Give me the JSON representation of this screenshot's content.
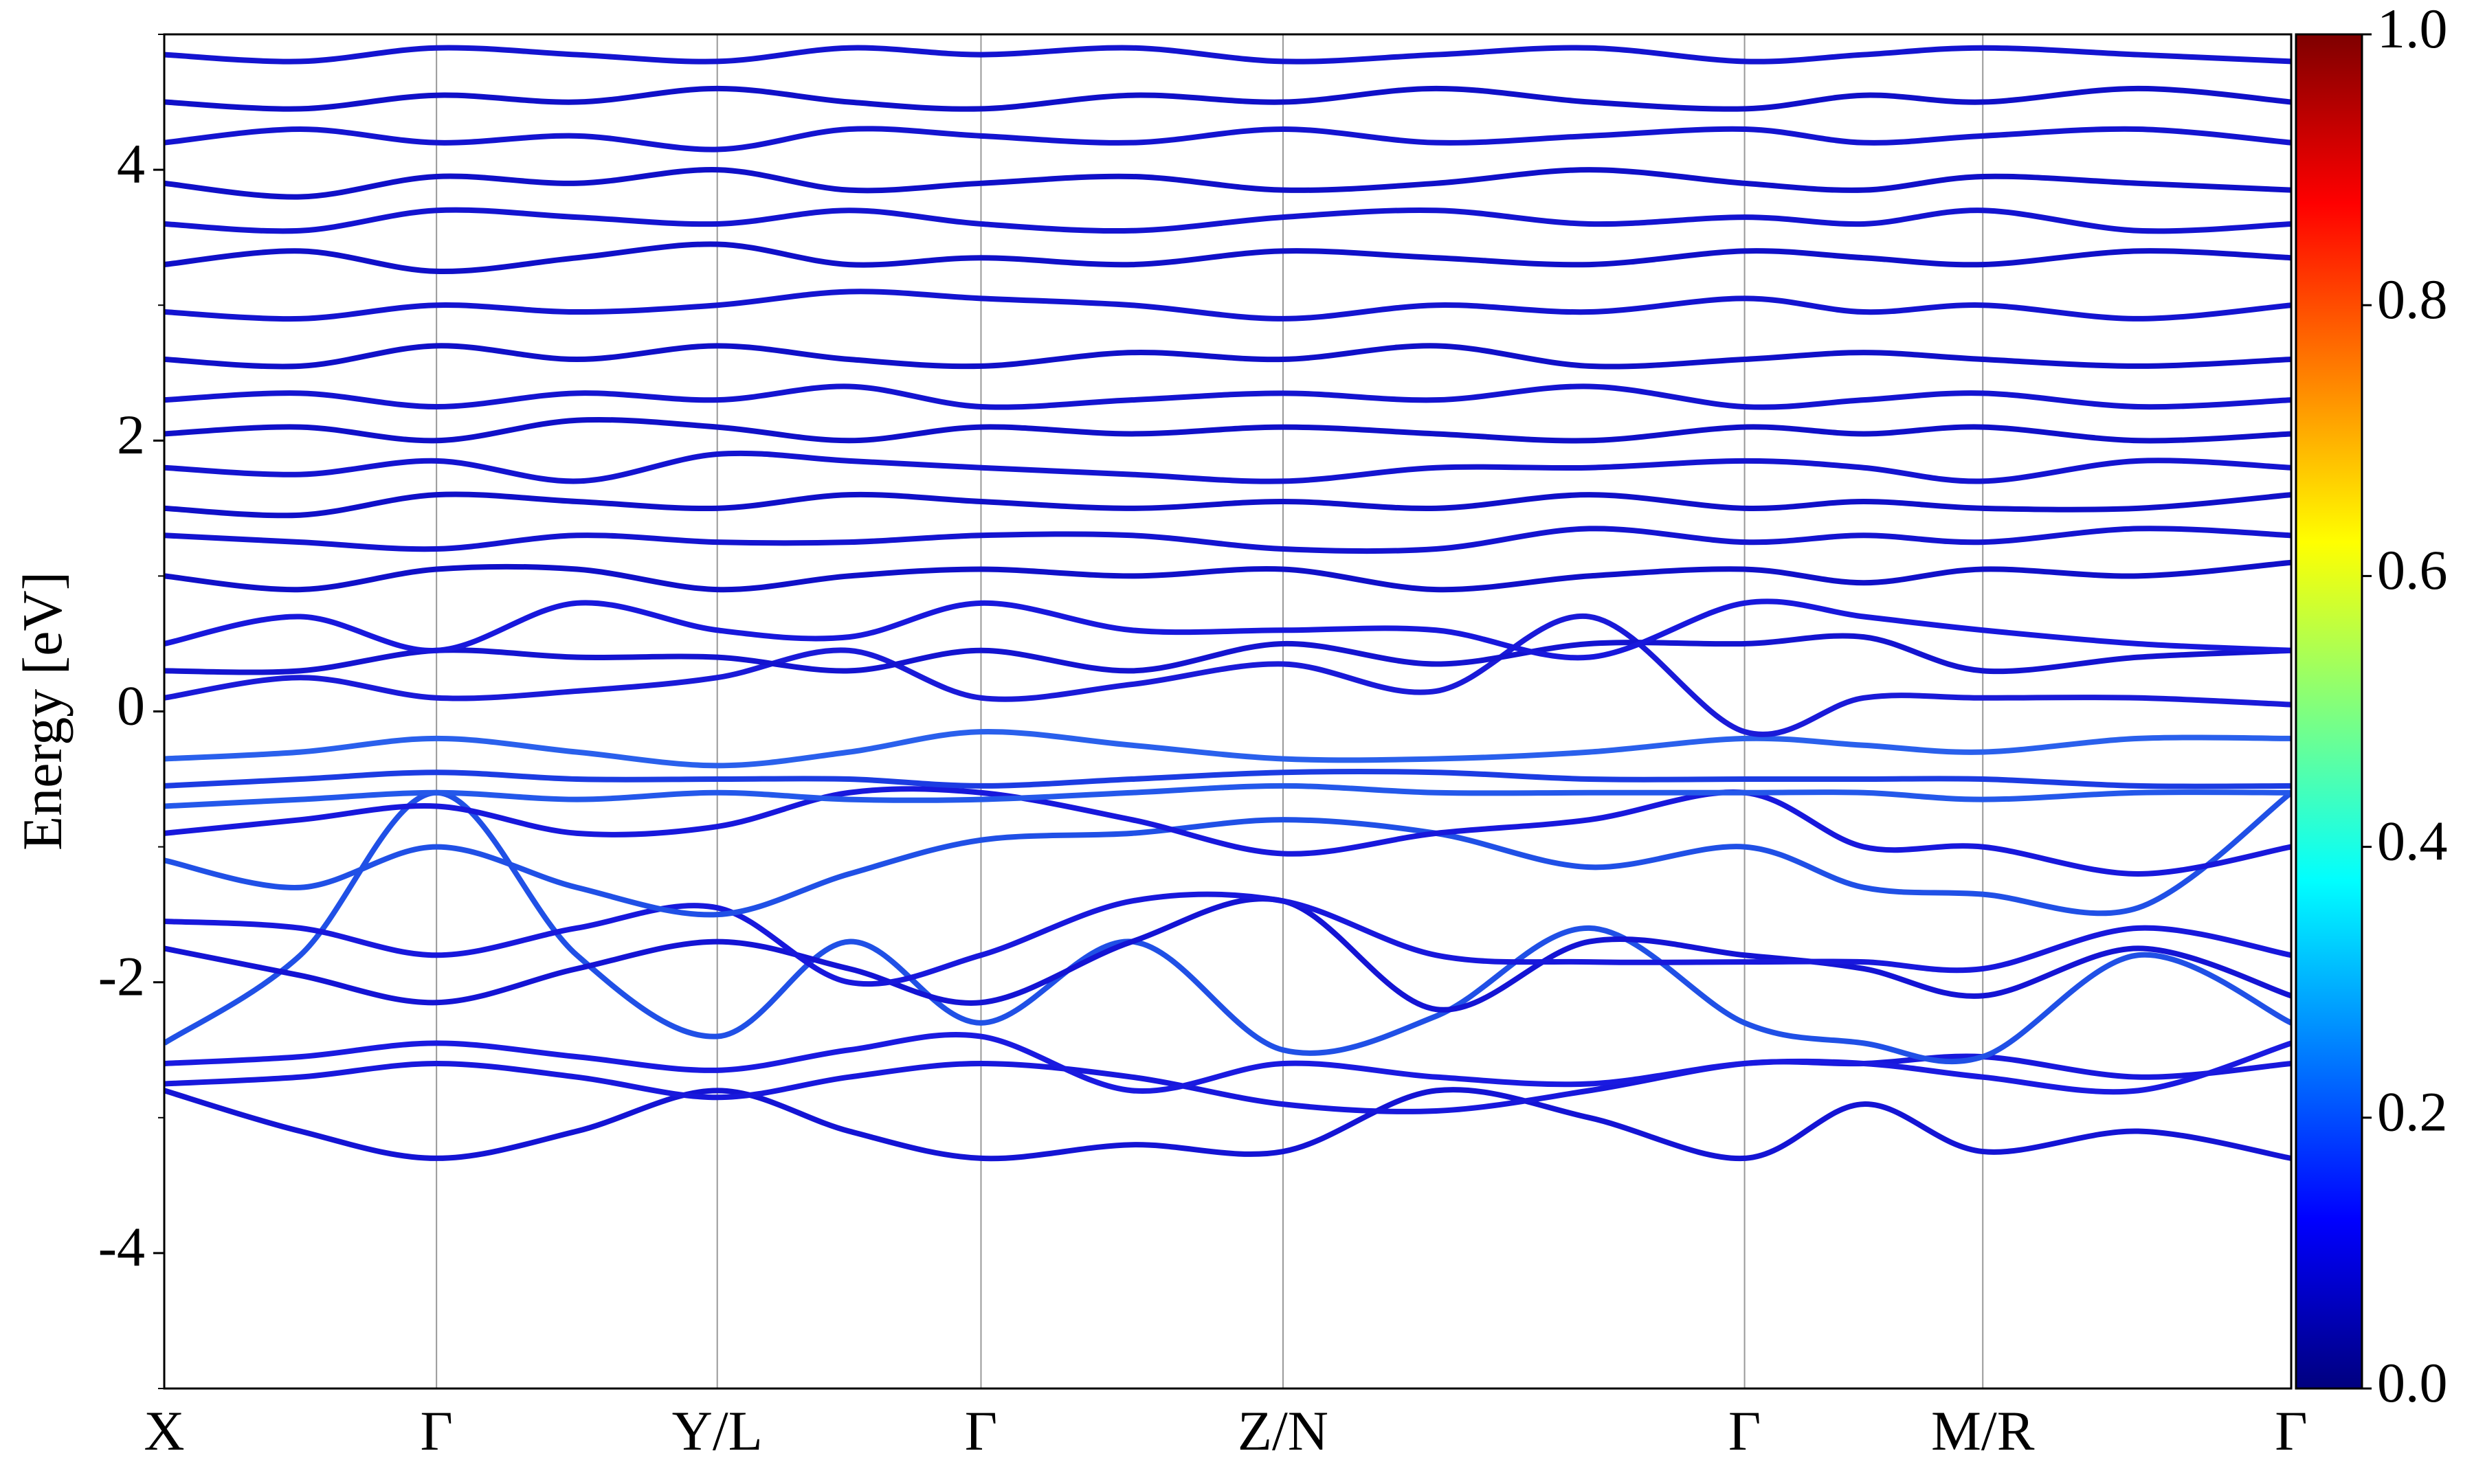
{
  "chart_data": {
    "type": "line",
    "y_label": "Energy [eV]",
    "x": [
      0,
      0.064,
      0.128,
      0.194,
      0.26,
      0.322,
      0.384,
      0.455,
      0.526,
      0.598,
      0.67,
      0.743,
      0.799,
      0.855,
      0.928,
      1.0
    ],
    "xlim": [
      0,
      1.0
    ],
    "xticks": [
      {
        "value": 0,
        "label": "X"
      },
      {
        "value": 0.128,
        "label": "Γ"
      },
      {
        "value": 0.26,
        "label": "Y/L"
      },
      {
        "value": 0.384,
        "label": "Γ"
      },
      {
        "value": 0.526,
        "label": "Z/N"
      },
      {
        "value": 0.743,
        "label": "Γ"
      },
      {
        "value": 0.855,
        "label": "M/R"
      },
      {
        "value": 1.0,
        "label": "Γ"
      }
    ],
    "ylim": [
      -5,
      5
    ],
    "yticks": [
      -4,
      -2,
      0,
      2,
      4
    ],
    "yminorticks": [
      -5,
      -3,
      -1,
      1,
      3,
      5
    ],
    "xgrid": true,
    "colorbar": {
      "lim": [
        0,
        1.0
      ],
      "ticks": [
        {
          "value": 0,
          "label": "0.0"
        },
        {
          "value": 0.2,
          "label": "0.2"
        },
        {
          "value": 0.4,
          "label": "0.4"
        },
        {
          "value": 0.6,
          "label": "0.6"
        },
        {
          "value": 0.8,
          "label": "0.8"
        },
        {
          "value": 1.0,
          "label": "1.0"
        }
      ],
      "colormap": [
        "#00007f",
        "#0000ff",
        "#007fff",
        "#00ffff",
        "#7fff7f",
        "#ffff00",
        "#ff7f00",
        "#ff0000",
        "#7f0000"
      ]
    },
    "series": [
      {
        "color": "#1414d4",
        "values": [
          -2.8,
          -3.1,
          -3.3,
          -3.1,
          -2.8,
          -3.1,
          -3.3,
          -3.2,
          -3.25,
          -2.8,
          -3.0,
          -3.3,
          -2.9,
          -3.25,
          -3.1,
          -3.3
        ]
      },
      {
        "color": "#1818dc",
        "values": [
          -2.75,
          -2.7,
          -2.6,
          -2.7,
          -2.85,
          -2.7,
          -2.6,
          -2.7,
          -2.9,
          -2.95,
          -2.8,
          -2.6,
          -2.6,
          -2.55,
          -2.7,
          -2.6
        ]
      },
      {
        "color": "#1a1ae0",
        "values": [
          -2.6,
          -2.55,
          -2.45,
          -2.55,
          -2.65,
          -2.5,
          -2.4,
          -2.8,
          -2.6,
          -2.7,
          -2.75,
          -2.6,
          -2.6,
          -2.7,
          -2.8,
          -2.45
        ]
      },
      {
        "color": "#2050e6",
        "values": [
          -2.45,
          -1.8,
          -0.6,
          -1.8,
          -2.4,
          -1.7,
          -2.3,
          -1.7,
          -2.5,
          -2.25,
          -1.6,
          -2.3,
          -2.45,
          -2.55,
          -1.8,
          -2.3
        ]
      },
      {
        "color": "#1414d4",
        "values": [
          -1.75,
          -1.95,
          -2.15,
          -1.9,
          -1.7,
          -1.9,
          -2.15,
          -1.7,
          -1.4,
          -2.2,
          -1.7,
          -1.8,
          -1.9,
          -2.1,
          -1.75,
          -2.1
        ]
      },
      {
        "color": "#1818dc",
        "values": [
          -1.55,
          -1.6,
          -1.8,
          -1.6,
          -1.45,
          -2.0,
          -1.8,
          -1.4,
          -1.4,
          -1.8,
          -1.85,
          -1.85,
          -1.85,
          -1.9,
          -1.6,
          -1.8
        ]
      },
      {
        "color": "#2050e6",
        "values": [
          -1.1,
          -1.3,
          -1.0,
          -1.3,
          -1.5,
          -1.2,
          -0.95,
          -0.9,
          -0.8,
          -0.9,
          -1.15,
          -1.0,
          -1.3,
          -1.35,
          -1.45,
          -0.6
        ]
      },
      {
        "color": "#1818dc",
        "values": [
          -0.9,
          -0.8,
          -0.7,
          -0.9,
          -0.85,
          -0.6,
          -0.6,
          -0.8,
          -1.05,
          -0.9,
          -0.8,
          -0.6,
          -1.0,
          -1.0,
          -1.2,
          -1.0
        ]
      },
      {
        "color": "#2458ea",
        "values": [
          -0.7,
          -0.65,
          -0.6,
          -0.65,
          -0.6,
          -0.65,
          -0.65,
          -0.6,
          -0.55,
          -0.6,
          -0.6,
          -0.6,
          -0.6,
          -0.65,
          -0.6,
          -0.6
        ]
      },
      {
        "color": "#1c3ce2",
        "values": [
          -0.55,
          -0.5,
          -0.45,
          -0.5,
          -0.5,
          -0.5,
          -0.55,
          -0.5,
          -0.45,
          -0.45,
          -0.5,
          -0.5,
          -0.5,
          -0.5,
          -0.55,
          -0.55
        ]
      },
      {
        "color": "#2a60ec",
        "values": [
          -0.35,
          -0.3,
          -0.2,
          -0.3,
          -0.4,
          -0.3,
          -0.15,
          -0.25,
          -0.35,
          -0.35,
          -0.3,
          -0.2,
          -0.25,
          -0.3,
          -0.2,
          -0.2
        ]
      },
      {
        "color": "#1a1ad8",
        "values": [
          0.1,
          0.25,
          0.1,
          0.15,
          0.25,
          0.45,
          0.1,
          0.2,
          0.35,
          0.15,
          0.7,
          -0.15,
          0.1,
          0.1,
          0.1,
          0.05
        ]
      },
      {
        "color": "#1414d0",
        "values": [
          0.3,
          0.3,
          0.45,
          0.4,
          0.4,
          0.3,
          0.45,
          0.3,
          0.5,
          0.35,
          0.5,
          0.5,
          0.55,
          0.3,
          0.4,
          0.45
        ]
      },
      {
        "color": "#1818dc",
        "values": [
          0.5,
          0.7,
          0.45,
          0.8,
          0.6,
          0.55,
          0.8,
          0.6,
          0.6,
          0.6,
          0.4,
          0.8,
          0.7,
          0.6,
          0.5,
          0.45
        ]
      },
      {
        "color": "#1010c8",
        "values": [
          1.0,
          0.9,
          1.05,
          1.05,
          0.9,
          1.0,
          1.05,
          1.0,
          1.05,
          0.9,
          1.0,
          1.05,
          0.95,
          1.05,
          1.0,
          1.1
        ]
      },
      {
        "color": "#1414d0",
        "values": [
          1.3,
          1.25,
          1.2,
          1.3,
          1.25,
          1.25,
          1.3,
          1.3,
          1.2,
          1.2,
          1.35,
          1.25,
          1.3,
          1.25,
          1.35,
          1.3
        ]
      },
      {
        "color": "#1010c8",
        "values": [
          1.5,
          1.45,
          1.6,
          1.55,
          1.5,
          1.6,
          1.55,
          1.5,
          1.55,
          1.5,
          1.6,
          1.5,
          1.55,
          1.5,
          1.5,
          1.6
        ]
      },
      {
        "color": "#1414d0",
        "values": [
          1.8,
          1.75,
          1.85,
          1.7,
          1.9,
          1.85,
          1.8,
          1.75,
          1.7,
          1.8,
          1.8,
          1.85,
          1.8,
          1.7,
          1.85,
          1.8
        ]
      },
      {
        "color": "#1010c8",
        "values": [
          2.05,
          2.1,
          2.0,
          2.15,
          2.1,
          2.0,
          2.1,
          2.05,
          2.1,
          2.05,
          2.0,
          2.1,
          2.05,
          2.1,
          2.0,
          2.05
        ]
      },
      {
        "color": "#1414d0",
        "values": [
          2.3,
          2.35,
          2.25,
          2.35,
          2.3,
          2.4,
          2.25,
          2.3,
          2.35,
          2.3,
          2.4,
          2.25,
          2.3,
          2.35,
          2.25,
          2.3
        ]
      },
      {
        "color": "#1010c8",
        "values": [
          2.6,
          2.55,
          2.7,
          2.6,
          2.7,
          2.6,
          2.55,
          2.65,
          2.6,
          2.7,
          2.55,
          2.6,
          2.65,
          2.6,
          2.55,
          2.6
        ]
      },
      {
        "color": "#1414d0",
        "values": [
          2.95,
          2.9,
          3.0,
          2.95,
          3.0,
          3.1,
          3.05,
          3.0,
          2.9,
          3.0,
          2.95,
          3.05,
          2.95,
          3.0,
          2.9,
          3.0
        ]
      },
      {
        "color": "#1010c8",
        "values": [
          3.3,
          3.4,
          3.25,
          3.35,
          3.45,
          3.3,
          3.35,
          3.3,
          3.4,
          3.35,
          3.3,
          3.4,
          3.35,
          3.3,
          3.4,
          3.35
        ]
      },
      {
        "color": "#1414d0",
        "values": [
          3.6,
          3.55,
          3.7,
          3.65,
          3.6,
          3.7,
          3.6,
          3.55,
          3.65,
          3.7,
          3.6,
          3.65,
          3.6,
          3.7,
          3.55,
          3.6
        ]
      },
      {
        "color": "#1010c8",
        "values": [
          3.9,
          3.8,
          3.95,
          3.9,
          4.0,
          3.85,
          3.9,
          3.95,
          3.85,
          3.9,
          4.0,
          3.9,
          3.85,
          3.95,
          3.9,
          3.85
        ]
      },
      {
        "color": "#1414d0",
        "values": [
          4.2,
          4.3,
          4.2,
          4.25,
          4.15,
          4.3,
          4.25,
          4.2,
          4.3,
          4.2,
          4.25,
          4.3,
          4.2,
          4.25,
          4.3,
          4.2
        ]
      },
      {
        "color": "#1010c8",
        "values": [
          4.5,
          4.45,
          4.55,
          4.5,
          4.6,
          4.5,
          4.45,
          4.55,
          4.5,
          4.6,
          4.5,
          4.45,
          4.55,
          4.5,
          4.6,
          4.5
        ]
      },
      {
        "color": "#1414d0",
        "values": [
          4.85,
          4.8,
          4.9,
          4.85,
          4.8,
          4.9,
          4.85,
          4.9,
          4.8,
          4.85,
          4.9,
          4.8,
          4.85,
          4.9,
          4.85,
          4.8
        ]
      }
    ]
  }
}
